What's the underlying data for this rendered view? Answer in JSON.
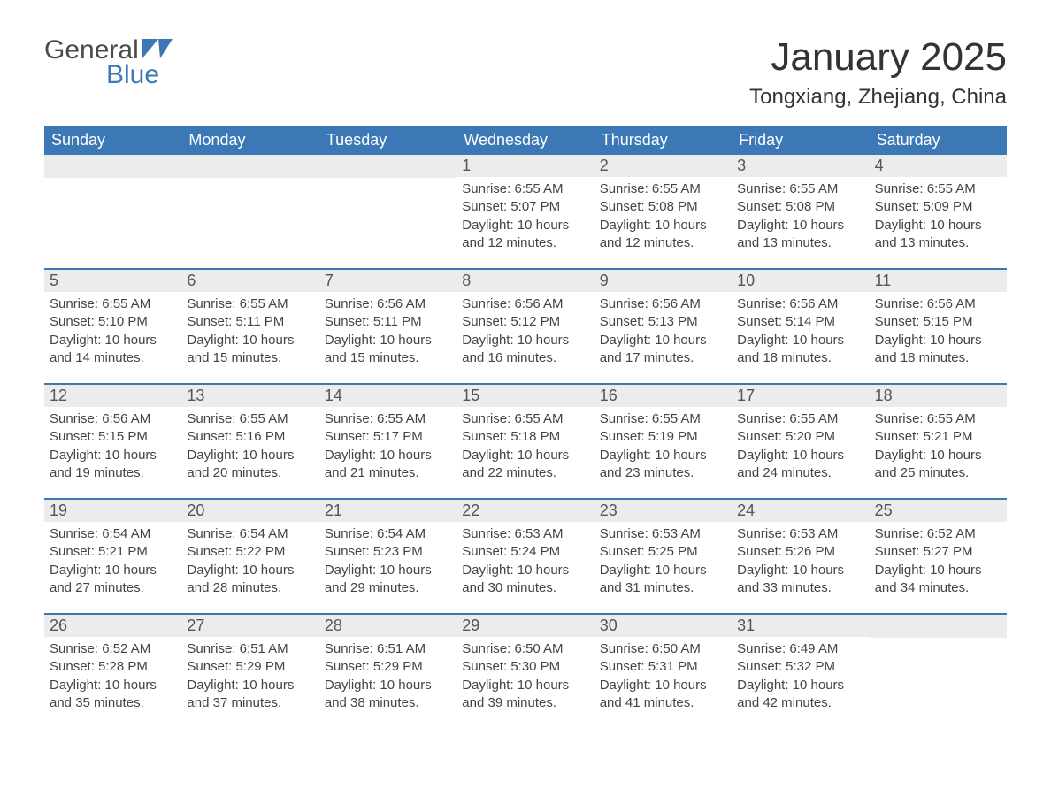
{
  "logo": {
    "text_general": "General",
    "text_blue": "Blue",
    "icon_color": "#3b78b5"
  },
  "title": "January 2025",
  "location": "Tongxiang, Zhejiang, China",
  "colors": {
    "header_bg": "#3b78b5",
    "header_text": "#ffffff",
    "daynum_bg": "#ececec",
    "daynum_text": "#555555",
    "body_text": "#444444",
    "week_border": "#3b78b5",
    "page_bg": "#ffffff"
  },
  "days_of_week": [
    "Sunday",
    "Monday",
    "Tuesday",
    "Wednesday",
    "Thursday",
    "Friday",
    "Saturday"
  ],
  "weeks": [
    [
      {
        "day": "",
        "sunrise": "",
        "sunset": "",
        "daylight1": "",
        "daylight2": ""
      },
      {
        "day": "",
        "sunrise": "",
        "sunset": "",
        "daylight1": "",
        "daylight2": ""
      },
      {
        "day": "",
        "sunrise": "",
        "sunset": "",
        "daylight1": "",
        "daylight2": ""
      },
      {
        "day": "1",
        "sunrise": "Sunrise: 6:55 AM",
        "sunset": "Sunset: 5:07 PM",
        "daylight1": "Daylight: 10 hours",
        "daylight2": "and 12 minutes."
      },
      {
        "day": "2",
        "sunrise": "Sunrise: 6:55 AM",
        "sunset": "Sunset: 5:08 PM",
        "daylight1": "Daylight: 10 hours",
        "daylight2": "and 12 minutes."
      },
      {
        "day": "3",
        "sunrise": "Sunrise: 6:55 AM",
        "sunset": "Sunset: 5:08 PM",
        "daylight1": "Daylight: 10 hours",
        "daylight2": "and 13 minutes."
      },
      {
        "day": "4",
        "sunrise": "Sunrise: 6:55 AM",
        "sunset": "Sunset: 5:09 PM",
        "daylight1": "Daylight: 10 hours",
        "daylight2": "and 13 minutes."
      }
    ],
    [
      {
        "day": "5",
        "sunrise": "Sunrise: 6:55 AM",
        "sunset": "Sunset: 5:10 PM",
        "daylight1": "Daylight: 10 hours",
        "daylight2": "and 14 minutes."
      },
      {
        "day": "6",
        "sunrise": "Sunrise: 6:55 AM",
        "sunset": "Sunset: 5:11 PM",
        "daylight1": "Daylight: 10 hours",
        "daylight2": "and 15 minutes."
      },
      {
        "day": "7",
        "sunrise": "Sunrise: 6:56 AM",
        "sunset": "Sunset: 5:11 PM",
        "daylight1": "Daylight: 10 hours",
        "daylight2": "and 15 minutes."
      },
      {
        "day": "8",
        "sunrise": "Sunrise: 6:56 AM",
        "sunset": "Sunset: 5:12 PM",
        "daylight1": "Daylight: 10 hours",
        "daylight2": "and 16 minutes."
      },
      {
        "day": "9",
        "sunrise": "Sunrise: 6:56 AM",
        "sunset": "Sunset: 5:13 PM",
        "daylight1": "Daylight: 10 hours",
        "daylight2": "and 17 minutes."
      },
      {
        "day": "10",
        "sunrise": "Sunrise: 6:56 AM",
        "sunset": "Sunset: 5:14 PM",
        "daylight1": "Daylight: 10 hours",
        "daylight2": "and 18 minutes."
      },
      {
        "day": "11",
        "sunrise": "Sunrise: 6:56 AM",
        "sunset": "Sunset: 5:15 PM",
        "daylight1": "Daylight: 10 hours",
        "daylight2": "and 18 minutes."
      }
    ],
    [
      {
        "day": "12",
        "sunrise": "Sunrise: 6:56 AM",
        "sunset": "Sunset: 5:15 PM",
        "daylight1": "Daylight: 10 hours",
        "daylight2": "and 19 minutes."
      },
      {
        "day": "13",
        "sunrise": "Sunrise: 6:55 AM",
        "sunset": "Sunset: 5:16 PM",
        "daylight1": "Daylight: 10 hours",
        "daylight2": "and 20 minutes."
      },
      {
        "day": "14",
        "sunrise": "Sunrise: 6:55 AM",
        "sunset": "Sunset: 5:17 PM",
        "daylight1": "Daylight: 10 hours",
        "daylight2": "and 21 minutes."
      },
      {
        "day": "15",
        "sunrise": "Sunrise: 6:55 AM",
        "sunset": "Sunset: 5:18 PM",
        "daylight1": "Daylight: 10 hours",
        "daylight2": "and 22 minutes."
      },
      {
        "day": "16",
        "sunrise": "Sunrise: 6:55 AM",
        "sunset": "Sunset: 5:19 PM",
        "daylight1": "Daylight: 10 hours",
        "daylight2": "and 23 minutes."
      },
      {
        "day": "17",
        "sunrise": "Sunrise: 6:55 AM",
        "sunset": "Sunset: 5:20 PM",
        "daylight1": "Daylight: 10 hours",
        "daylight2": "and 24 minutes."
      },
      {
        "day": "18",
        "sunrise": "Sunrise: 6:55 AM",
        "sunset": "Sunset: 5:21 PM",
        "daylight1": "Daylight: 10 hours",
        "daylight2": "and 25 minutes."
      }
    ],
    [
      {
        "day": "19",
        "sunrise": "Sunrise: 6:54 AM",
        "sunset": "Sunset: 5:21 PM",
        "daylight1": "Daylight: 10 hours",
        "daylight2": "and 27 minutes."
      },
      {
        "day": "20",
        "sunrise": "Sunrise: 6:54 AM",
        "sunset": "Sunset: 5:22 PM",
        "daylight1": "Daylight: 10 hours",
        "daylight2": "and 28 minutes."
      },
      {
        "day": "21",
        "sunrise": "Sunrise: 6:54 AM",
        "sunset": "Sunset: 5:23 PM",
        "daylight1": "Daylight: 10 hours",
        "daylight2": "and 29 minutes."
      },
      {
        "day": "22",
        "sunrise": "Sunrise: 6:53 AM",
        "sunset": "Sunset: 5:24 PM",
        "daylight1": "Daylight: 10 hours",
        "daylight2": "and 30 minutes."
      },
      {
        "day": "23",
        "sunrise": "Sunrise: 6:53 AM",
        "sunset": "Sunset: 5:25 PM",
        "daylight1": "Daylight: 10 hours",
        "daylight2": "and 31 minutes."
      },
      {
        "day": "24",
        "sunrise": "Sunrise: 6:53 AM",
        "sunset": "Sunset: 5:26 PM",
        "daylight1": "Daylight: 10 hours",
        "daylight2": "and 33 minutes."
      },
      {
        "day": "25",
        "sunrise": "Sunrise: 6:52 AM",
        "sunset": "Sunset: 5:27 PM",
        "daylight1": "Daylight: 10 hours",
        "daylight2": "and 34 minutes."
      }
    ],
    [
      {
        "day": "26",
        "sunrise": "Sunrise: 6:52 AM",
        "sunset": "Sunset: 5:28 PM",
        "daylight1": "Daylight: 10 hours",
        "daylight2": "and 35 minutes."
      },
      {
        "day": "27",
        "sunrise": "Sunrise: 6:51 AM",
        "sunset": "Sunset: 5:29 PM",
        "daylight1": "Daylight: 10 hours",
        "daylight2": "and 37 minutes."
      },
      {
        "day": "28",
        "sunrise": "Sunrise: 6:51 AM",
        "sunset": "Sunset: 5:29 PM",
        "daylight1": "Daylight: 10 hours",
        "daylight2": "and 38 minutes."
      },
      {
        "day": "29",
        "sunrise": "Sunrise: 6:50 AM",
        "sunset": "Sunset: 5:30 PM",
        "daylight1": "Daylight: 10 hours",
        "daylight2": "and 39 minutes."
      },
      {
        "day": "30",
        "sunrise": "Sunrise: 6:50 AM",
        "sunset": "Sunset: 5:31 PM",
        "daylight1": "Daylight: 10 hours",
        "daylight2": "and 41 minutes."
      },
      {
        "day": "31",
        "sunrise": "Sunrise: 6:49 AM",
        "sunset": "Sunset: 5:32 PM",
        "daylight1": "Daylight: 10 hours",
        "daylight2": "and 42 minutes."
      },
      {
        "day": "",
        "sunrise": "",
        "sunset": "",
        "daylight1": "",
        "daylight2": ""
      }
    ]
  ]
}
